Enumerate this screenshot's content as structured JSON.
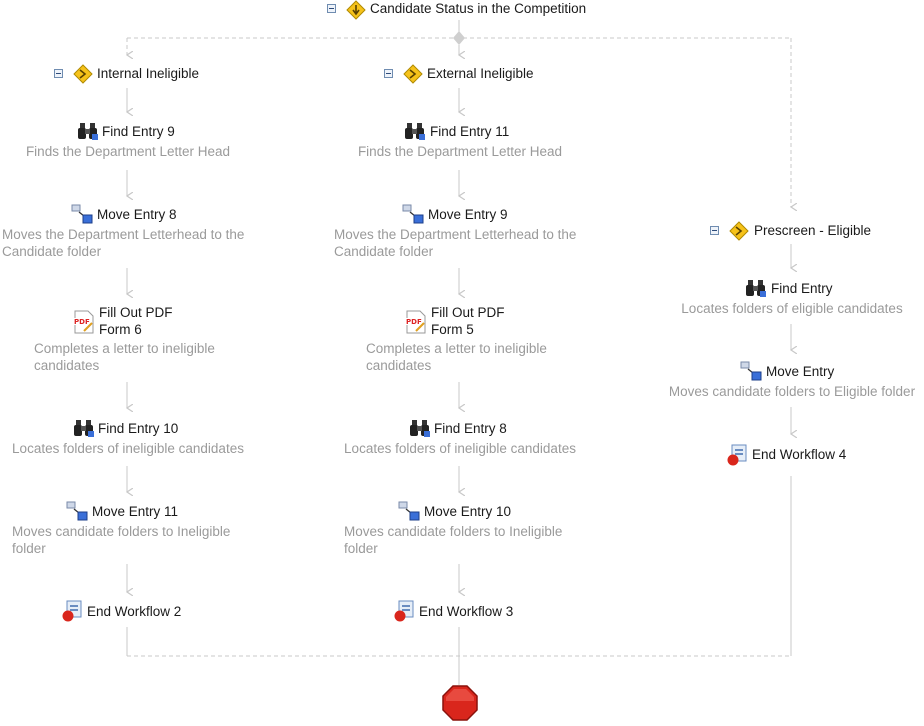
{
  "root": {
    "label": "Candidate Status in the Competition"
  },
  "branches": {
    "internal": {
      "label": "Internal Ineligible",
      "activities": [
        {
          "title": "Find Entry 9",
          "desc": "Finds the Department Letter Head",
          "icon": "binoculars-icon"
        },
        {
          "title": "Move Entry 8",
          "desc": "Moves the Department Letterhead to the Candidate folder",
          "icon": "move-entry-icon"
        },
        {
          "title": "Fill Out PDF Form 6",
          "desc": "Completes a letter to ineligible candidates",
          "icon": "pdf-form-icon"
        },
        {
          "title": "Find Entry 10",
          "desc": "Locates folders of ineligible candidates",
          "icon": "binoculars-icon"
        },
        {
          "title": "Move Entry 11",
          "desc": "Moves candidate folders to Ineligible folder",
          "icon": "move-entry-icon"
        },
        {
          "title": "End Workflow 2",
          "desc": "",
          "icon": "end-workflow-icon"
        }
      ]
    },
    "external": {
      "label": "External Ineligible",
      "activities": [
        {
          "title": "Find Entry 11",
          "desc": "Finds the Department Letter Head",
          "icon": "binoculars-icon"
        },
        {
          "title": "Move Entry 9",
          "desc": "Moves the Department Letterhead to the Candidate folder",
          "icon": "move-entry-icon"
        },
        {
          "title": "Fill Out PDF Form 5",
          "desc": "Completes a letter to ineligible candidates",
          "icon": "pdf-form-icon"
        },
        {
          "title": "Find Entry 8",
          "desc": "Locates folders of ineligible candidates",
          "icon": "binoculars-icon"
        },
        {
          "title": "Move Entry 10",
          "desc": "Moves candidate folders to Ineligible folder",
          "icon": "move-entry-icon"
        },
        {
          "title": "End Workflow 3",
          "desc": "",
          "icon": "end-workflow-icon"
        }
      ]
    },
    "eligible": {
      "label": "Prescreen - Eligible",
      "activities": [
        {
          "title": "Find Entry",
          "desc": "Locates folders of eligible candidates",
          "icon": "binoculars-icon"
        },
        {
          "title": "Move Entry",
          "desc": "Moves candidate folders to Eligible folder",
          "icon": "move-entry-icon"
        },
        {
          "title": "End Workflow 4",
          "desc": "",
          "icon": "end-workflow-icon"
        }
      ]
    }
  },
  "pdf_form": {
    "internal_title_line1": "Fill Out PDF",
    "internal_title_line2": "Form 6",
    "external_title_line1": "Fill Out PDF",
    "external_title_line2": "Form 5"
  },
  "desc_lines": {
    "int_move_1": "Moves the Department Letterhead to the",
    "int_move_2": "Candidate folder",
    "int_pdf_1": "Completes a letter to ineligible",
    "int_pdf_2": "candidates",
    "int_move2_1": "Moves candidate folders to Ineligible",
    "int_move2_2": "folder",
    "ext_move_1": "Moves the Department Letterhead to the",
    "ext_move_2": "Candidate folder",
    "ext_pdf_1": "Completes a letter to ineligible",
    "ext_pdf_2": "candidates",
    "ext_move2_1": "Moves candidate folders to Ineligible",
    "ext_move2_2": "folder"
  },
  "colors": {
    "connector": "#c8c8c8",
    "title_text": "#1a1a1a",
    "desc_text": "#9a9a9a",
    "condition_yellow": "#f6c21a",
    "stop_red": "#d9261c"
  }
}
